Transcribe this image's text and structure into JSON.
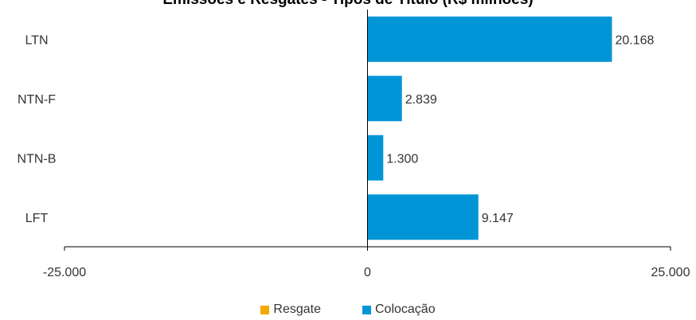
{
  "chart_data": {
    "type": "bar",
    "orientation": "horizontal",
    "title": "Emissões e Resgates - Tipos de Título (R$ milhões)",
    "categories": [
      "LTN",
      "NTN-F",
      "NTN-B",
      "LFT"
    ],
    "series": [
      {
        "name": "Resgate",
        "color": "#F5A800",
        "values": [
          0,
          0,
          0,
          0
        ]
      },
      {
        "name": "Colocação",
        "color": "#0095D6",
        "values": [
          20168,
          2839,
          1300,
          9147
        ]
      }
    ],
    "data_labels": [
      "20.168",
      "2.839",
      "1.300",
      "9.147"
    ],
    "xlim": [
      -25000,
      25000
    ],
    "x_ticks": [
      -25000,
      0,
      25000
    ],
    "x_tick_labels": [
      "-25.000",
      "0",
      "25.000"
    ],
    "grid": false,
    "legend_position": "bottom"
  },
  "colors": {
    "axis": "#000000",
    "text": "#333333"
  }
}
